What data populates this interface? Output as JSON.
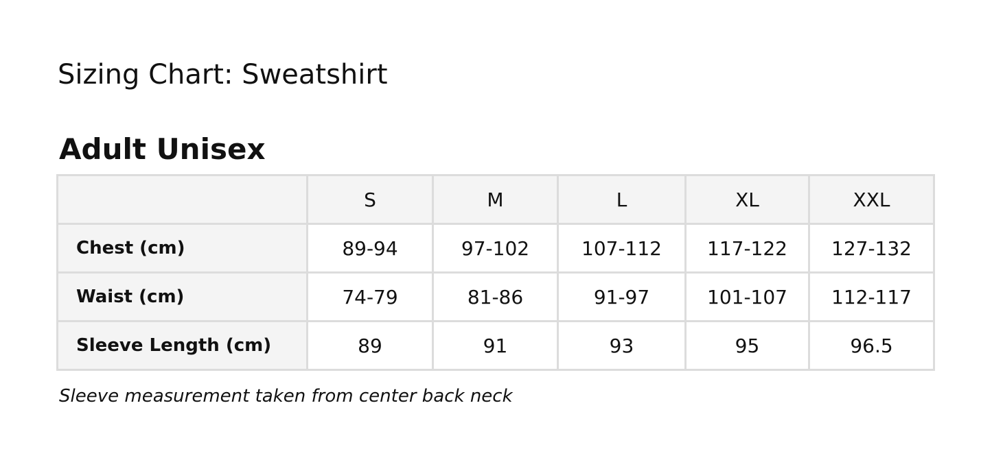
{
  "title": "Sizing Chart: Sweatshirt",
  "subtitle": "Adult Unisex",
  "table": {
    "sizes": [
      "S",
      "M",
      "L",
      "XL",
      "XXL"
    ],
    "rows": [
      {
        "label": "Chest (cm)",
        "values": [
          "89-94",
          "97-102",
          "107-112",
          "117-122",
          "127-132"
        ]
      },
      {
        "label": "Waist (cm)",
        "values": [
          "74-79",
          "81-86",
          "91-97",
          "101-107",
          "112-117"
        ]
      },
      {
        "label": "Sleeve Length (cm)",
        "values": [
          "89",
          "91",
          "93",
          "95",
          "96.5"
        ]
      }
    ]
  },
  "note": "Sleeve measurement taken from center back neck"
}
